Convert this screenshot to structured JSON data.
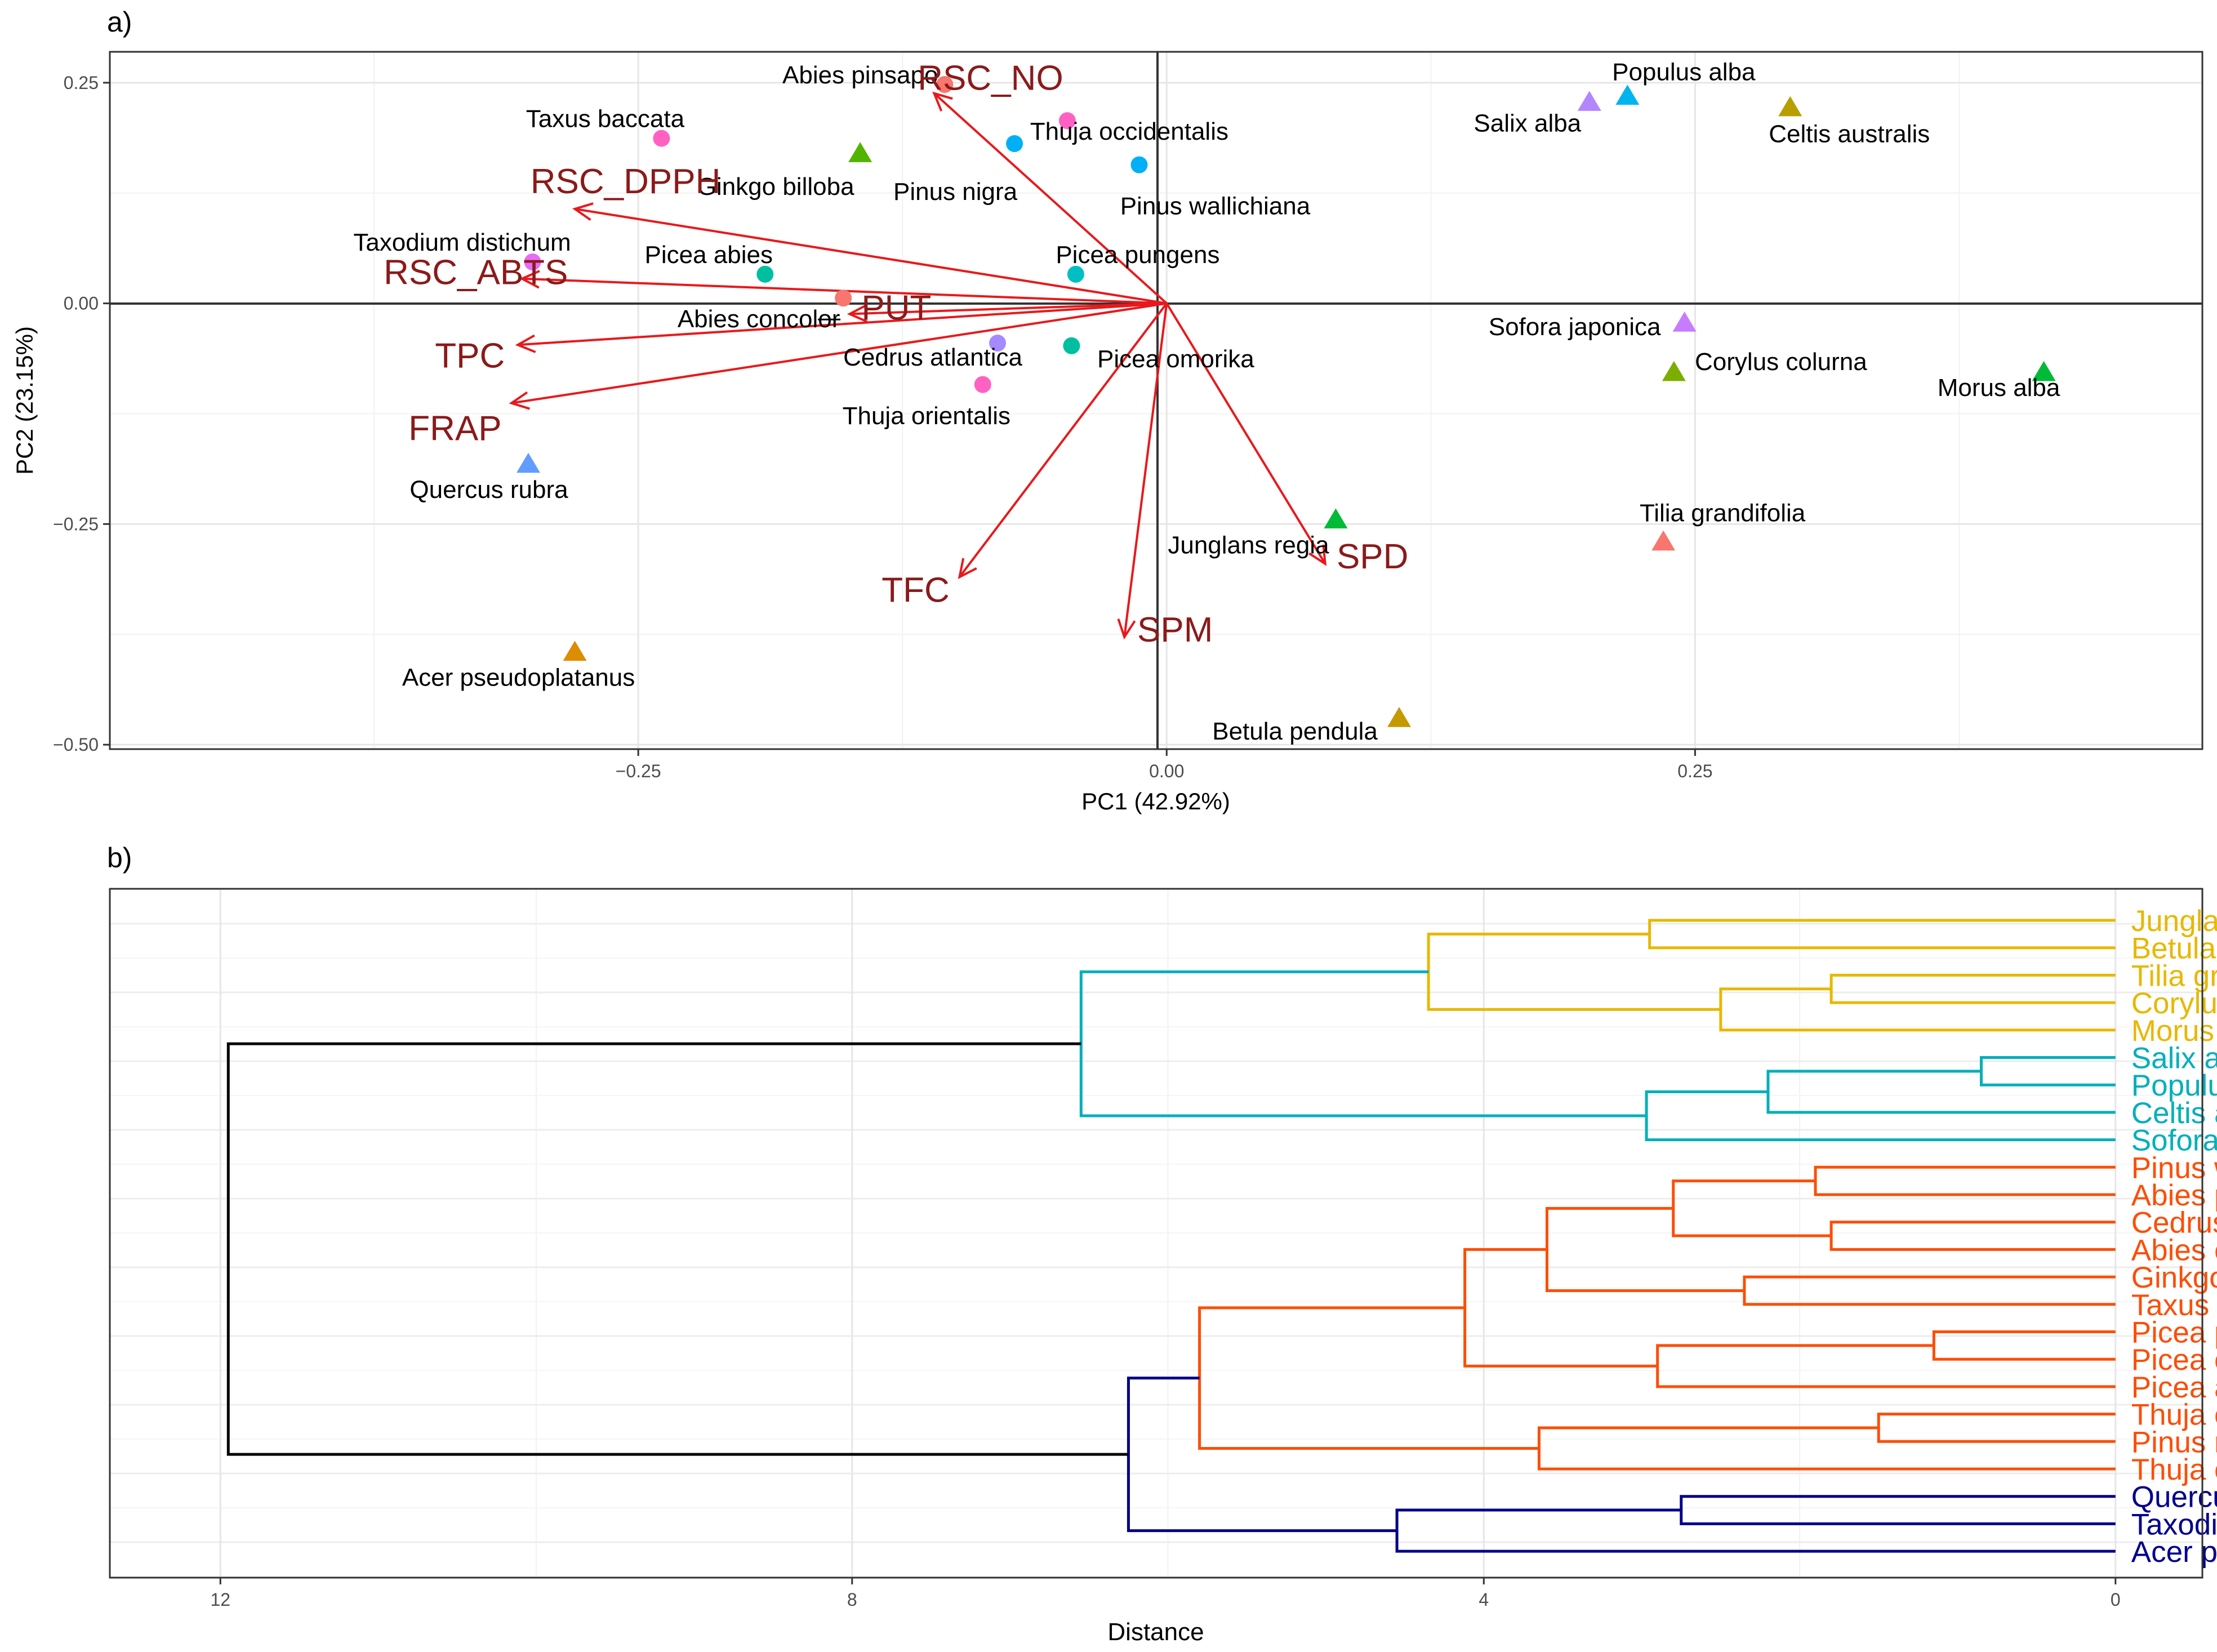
{
  "chart_data": [
    {
      "type": "scatter",
      "panel_label": "a)",
      "xlabel": "PC1 (42.92%)",
      "ylabel": "PC2 (23.15%)",
      "xlim": [
        -0.5,
        0.49
      ],
      "ylim": [
        -0.505,
        0.285
      ],
      "xticks": [
        -0.25,
        0.0,
        0.25
      ],
      "xtick_labels": [
        "−0.25",
        "0.00",
        "0.25"
      ],
      "yticks": [
        -0.5,
        -0.25,
        0.0,
        0.25
      ],
      "ytick_labels": [
        "−0.50",
        "−0.25",
        "0.00",
        "0.25"
      ],
      "grid": true,
      "points": [
        {
          "name": "Abies pinsapo",
          "x": -0.105,
          "y": 0.248,
          "shape": "circle",
          "color": "#F8766D"
        },
        {
          "name": "Thuja occidentalis",
          "x": -0.047,
          "y": 0.207,
          "shape": "circle",
          "color": "#FF61C3"
        },
        {
          "name": "Taxus baccata",
          "x": -0.239,
          "y": 0.187,
          "shape": "circle",
          "color": "#FF61C3"
        },
        {
          "name": "Pinus nigra",
          "x": -0.072,
          "y": 0.181,
          "shape": "circle",
          "color": "#00B0F6"
        },
        {
          "name": "Pinus wallichiana",
          "x": -0.013,
          "y": 0.157,
          "shape": "circle",
          "color": "#00B0F6"
        },
        {
          "name": "Ginkgo billoba",
          "x": -0.145,
          "y": 0.17,
          "shape": "triangle",
          "color": "#53B400"
        },
        {
          "name": "Taxodium distichum",
          "x": -0.3,
          "y": 0.047,
          "shape": "circle",
          "color": "#E76BF3"
        },
        {
          "name": "Picea abies",
          "x": -0.19,
          "y": 0.033,
          "shape": "circle",
          "color": "#00BFA0"
        },
        {
          "name": "Picea pungens",
          "x": -0.043,
          "y": 0.033,
          "shape": "circle",
          "color": "#00BFC4"
        },
        {
          "name": "Abies concolor",
          "x": -0.153,
          "y": 0.006,
          "shape": "circle",
          "color": "#F8766D"
        },
        {
          "name": "Cedrus atlantica",
          "x": -0.08,
          "y": -0.045,
          "shape": "circle",
          "color": "#A58AFF"
        },
        {
          "name": "Picea omorika",
          "x": -0.045,
          "y": -0.048,
          "shape": "circle",
          "color": "#00BFA0"
        },
        {
          "name": "Thuja orientalis",
          "x": -0.087,
          "y": -0.092,
          "shape": "circle",
          "color": "#FF61C3"
        },
        {
          "name": "Quercus rubra",
          "x": -0.302,
          "y": -0.182,
          "shape": "triangle",
          "color": "#619CFF"
        },
        {
          "name": "Acer pseudoplatanus",
          "x": -0.28,
          "y": -0.395,
          "shape": "triangle",
          "color": "#DE8C00"
        },
        {
          "name": "Populus alba",
          "x": 0.218,
          "y": 0.235,
          "shape": "triangle",
          "color": "#00B4F0"
        },
        {
          "name": "Salix alba",
          "x": 0.2,
          "y": 0.228,
          "shape": "triangle",
          "color": "#B385FF"
        },
        {
          "name": "Celtis australis",
          "x": 0.295,
          "y": 0.222,
          "shape": "triangle",
          "color": "#B79F00"
        },
        {
          "name": "Sofora japonica",
          "x": 0.245,
          "y": -0.022,
          "shape": "triangle",
          "color": "#C77CFF"
        },
        {
          "name": "Corylus colurna",
          "x": 0.24,
          "y": -0.078,
          "shape": "triangle",
          "color": "#7CAE00"
        },
        {
          "name": "Morus alba",
          "x": 0.415,
          "y": -0.078,
          "shape": "triangle",
          "color": "#00BA38"
        },
        {
          "name": "Junglans regia",
          "x": 0.08,
          "y": -0.245,
          "shape": "triangle",
          "color": "#00BA38"
        },
        {
          "name": "Tilia grandifolia",
          "x": 0.235,
          "y": -0.27,
          "shape": "triangle",
          "color": "#F8766D"
        },
        {
          "name": "Betula pendula",
          "x": 0.11,
          "y": -0.47,
          "shape": "triangle",
          "color": "#C49A00"
        }
      ],
      "loadings": [
        {
          "name": "RSC_NO",
          "x": -0.11,
          "y": 0.238
        },
        {
          "name": "RSC_DPPH",
          "x": -0.28,
          "y": 0.107
        },
        {
          "name": "RSC_ABTS",
          "x": -0.305,
          "y": 0.028
        },
        {
          "name": "PUT",
          "x": -0.15,
          "y": -0.012
        },
        {
          "name": "TPC",
          "x": -0.307,
          "y": -0.047
        },
        {
          "name": "FRAP",
          "x": -0.31,
          "y": -0.113
        },
        {
          "name": "TFC",
          "x": -0.098,
          "y": -0.31
        },
        {
          "name": "SPM",
          "x": -0.02,
          "y": -0.378
        },
        {
          "name": "SPD",
          "x": 0.075,
          "y": -0.295
        }
      ],
      "loading_color": "#E8191C",
      "loading_label_color": "#8B1A1A"
    },
    {
      "type": "dendrogram",
      "panel_label": "b)",
      "xlabel": "Distance",
      "xlim": [
        12.7,
        -0.55
      ],
      "xticks": [
        12,
        8,
        4,
        0
      ],
      "xtick_labels": [
        "12",
        "8",
        "4",
        "0"
      ],
      "grid": true,
      "leaves": [
        {
          "name": "Junglans regia",
          "group": "yellow"
        },
        {
          "name": "Betula pendula",
          "group": "yellow"
        },
        {
          "name": "Tilia grandifolia",
          "group": "yellow"
        },
        {
          "name": "Corylus colurna",
          "group": "yellow"
        },
        {
          "name": "Morus alba",
          "group": "yellow"
        },
        {
          "name": "Salix alba",
          "group": "teal"
        },
        {
          "name": "Populus alba",
          "group": "teal"
        },
        {
          "name": "Celtis australis",
          "group": "teal"
        },
        {
          "name": "Sofora japonica",
          "group": "teal"
        },
        {
          "name": "Pinus wallichiana",
          "group": "orange"
        },
        {
          "name": "Abies pinsapo",
          "group": "orange"
        },
        {
          "name": "Cedrus atlantica",
          "group": "orange"
        },
        {
          "name": "Abies concolor",
          "group": "orange"
        },
        {
          "name": "Ginkgo billoba",
          "group": "orange"
        },
        {
          "name": "Taxus baccata",
          "group": "orange"
        },
        {
          "name": "Picea pungens",
          "group": "orange"
        },
        {
          "name": "Picea omorika",
          "group": "orange"
        },
        {
          "name": "Picea abies",
          "group": "orange"
        },
        {
          "name": "Thuja occidentalis",
          "group": "orange"
        },
        {
          "name": "Pinus nigra",
          "group": "orange"
        },
        {
          "name": "Thuja orientalis",
          "group": "orange"
        },
        {
          "name": "Quercus rubra",
          "group": "navy"
        },
        {
          "name": "Taxodium distichum",
          "group": "navy"
        },
        {
          "name": "Acer pseudoplatanus",
          "group": "navy"
        }
      ],
      "group_colors": {
        "yellow": "#E7B800",
        "teal": "#00AFBB",
        "orange": "#FC4E07",
        "navy": "#00008B",
        "root": "#000000"
      },
      "merges": [
        {
          "a": 0,
          "b": 1,
          "h": 2.95,
          "group": "yellow"
        },
        {
          "a": 2,
          "b": 3,
          "h": 1.8,
          "group": "yellow"
        },
        {
          "a": "m1",
          "b": 4,
          "h": 2.5,
          "group": "yellow"
        },
        {
          "a": "m0",
          "b": "m2",
          "h": 4.35,
          "group": "yellow"
        },
        {
          "a": 5,
          "b": 6,
          "h": 0.85,
          "group": "teal"
        },
        {
          "a": "m4",
          "b": 7,
          "h": 2.2,
          "group": "teal"
        },
        {
          "a": "m5",
          "b": 8,
          "h": 2.97,
          "group": "teal"
        },
        {
          "a": "m3",
          "b": "m6",
          "h": 6.55,
          "group": "teal"
        },
        {
          "a": 9,
          "b": 10,
          "h": 1.9,
          "group": "orange"
        },
        {
          "a": 11,
          "b": 12,
          "h": 1.8,
          "group": "orange"
        },
        {
          "a": "m8",
          "b": "m9",
          "h": 2.8,
          "group": "orange"
        },
        {
          "a": 13,
          "b": 14,
          "h": 2.35,
          "group": "orange"
        },
        {
          "a": "m10",
          "b": "m11",
          "h": 3.6,
          "group": "orange"
        },
        {
          "a": 15,
          "b": 16,
          "h": 1.15,
          "group": "orange"
        },
        {
          "a": "m13",
          "b": 17,
          "h": 2.9,
          "group": "orange"
        },
        {
          "a": "m12",
          "b": "m14",
          "h": 4.12,
          "group": "orange"
        },
        {
          "a": 18,
          "b": 19,
          "h": 1.5,
          "group": "orange"
        },
        {
          "a": "m16",
          "b": 20,
          "h": 3.65,
          "group": "orange"
        },
        {
          "a": "m15",
          "b": "m17",
          "h": 5.8,
          "group": "orange"
        },
        {
          "a": 21,
          "b": 22,
          "h": 2.75,
          "group": "navy"
        },
        {
          "a": "m19",
          "b": 23,
          "h": 4.55,
          "group": "navy"
        },
        {
          "a": "m18",
          "b": "m20",
          "h": 6.25,
          "group": "navy"
        },
        {
          "a": "m7",
          "b": "m21",
          "h": 11.95,
          "group": "root"
        }
      ]
    }
  ]
}
